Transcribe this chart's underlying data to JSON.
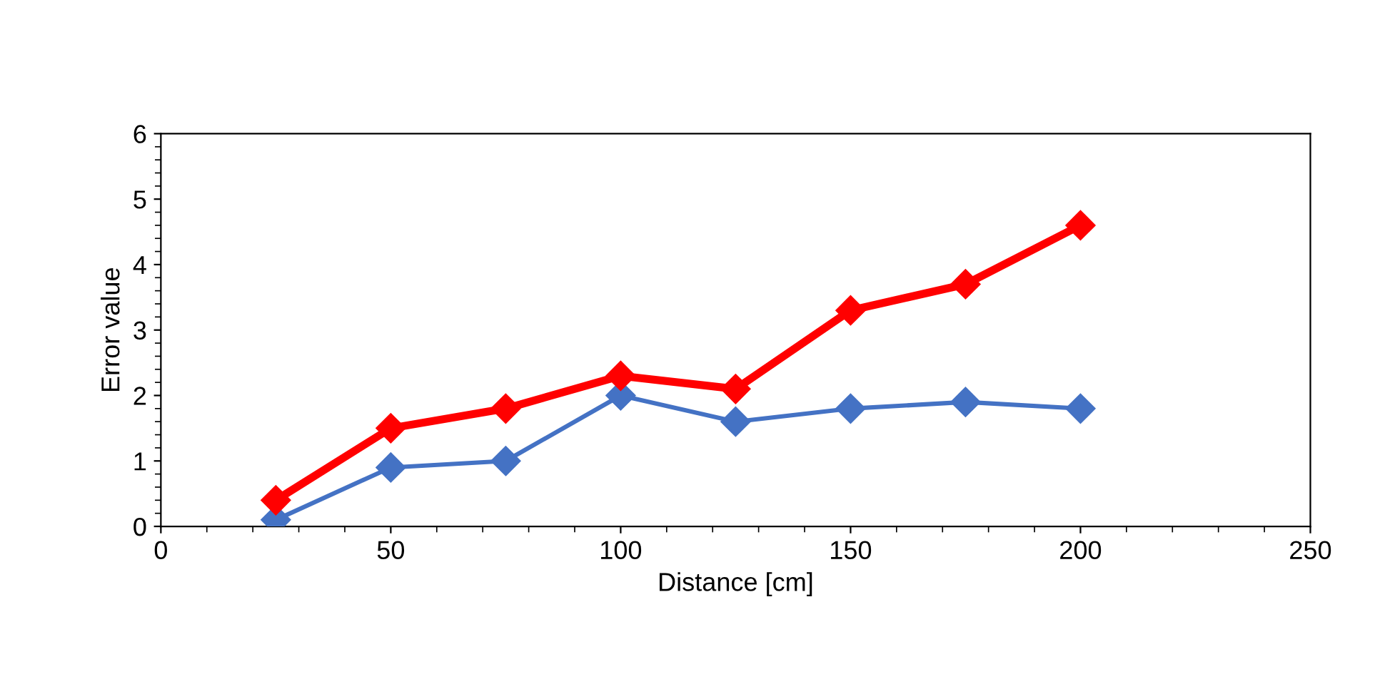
{
  "chart_data": {
    "type": "line",
    "xlabel": "Distance [cm]",
    "ylabel": "Error value",
    "x": [
      25,
      50,
      75,
      100,
      125,
      150,
      175,
      200
    ],
    "series": [
      {
        "color": "#4472c4",
        "values": [
          0.1,
          0.9,
          1.0,
          2.0,
          1.6,
          1.8,
          1.9,
          1.8
        ]
      },
      {
        "color": "#ff0000",
        "values": [
          0.4,
          1.5,
          1.8,
          2.3,
          2.1,
          3.3,
          3.7,
          4.6
        ]
      }
    ],
    "xlim": [
      0,
      250
    ],
    "xticks": [
      0,
      50,
      100,
      150,
      200,
      250
    ],
    "ylim": [
      0,
      6
    ],
    "yticks": [
      0,
      1,
      2,
      3,
      4,
      5,
      6
    ],
    "marker": "diamond",
    "line_style": "solid",
    "grid": false
  }
}
